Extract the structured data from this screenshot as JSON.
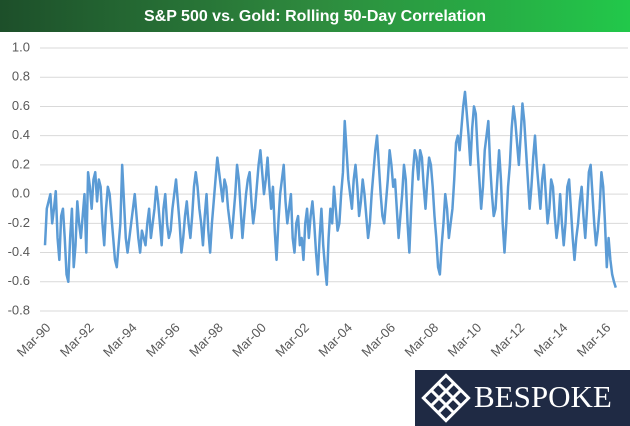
{
  "chart_data": {
    "type": "line",
    "title": "S&P 500 vs. Gold: Rolling 50-Day Correlation",
    "categories": [
      "Mar-90",
      null,
      null,
      null,
      null,
      null,
      null,
      null,
      null,
      null,
      null,
      null,
      null,
      null,
      null,
      null,
      null,
      null,
      null,
      null,
      null,
      null,
      null,
      null,
      "Mar-92",
      null,
      null,
      null,
      null,
      null,
      null,
      null,
      null,
      null,
      null,
      null,
      null,
      null,
      null,
      null,
      null,
      null,
      null,
      null,
      null,
      null,
      null,
      null,
      "Mar-94",
      null,
      null,
      null,
      null,
      null,
      null,
      null,
      null,
      null,
      null,
      null,
      null,
      null,
      null,
      null,
      null,
      null,
      null,
      null,
      null,
      null,
      null,
      null,
      "Mar-96",
      null,
      null,
      null,
      null,
      null,
      null,
      null,
      null,
      null,
      null,
      null,
      null,
      null,
      null,
      null,
      null,
      null,
      null,
      null,
      null,
      null,
      null,
      null,
      "Mar-98",
      null,
      null,
      null,
      null,
      null,
      null,
      null,
      null,
      null,
      null,
      null,
      null,
      null,
      null,
      null,
      null,
      null,
      null,
      null,
      null,
      null,
      null,
      null,
      "Mar-00",
      null,
      null,
      null,
      null,
      null,
      null,
      null,
      null,
      null,
      null,
      null,
      null,
      null,
      null,
      null,
      null,
      null,
      null,
      null,
      null,
      null,
      null,
      null,
      "Mar-02",
      null,
      null,
      null,
      null,
      null,
      null,
      null,
      null,
      null,
      null,
      null,
      null,
      null,
      null,
      null,
      null,
      null,
      null,
      null,
      null,
      null,
      null,
      null,
      "Mar-04",
      null,
      null,
      null,
      null,
      null,
      null,
      null,
      null,
      null,
      null,
      null,
      null,
      null,
      null,
      null,
      null,
      null,
      null,
      null,
      null,
      null,
      null,
      null,
      "Mar-06",
      null,
      null,
      null,
      null,
      null,
      null,
      null,
      null,
      null,
      null,
      null,
      null,
      null,
      null,
      null,
      null,
      null,
      null,
      null,
      null,
      null,
      null,
      null,
      "Mar-08",
      null,
      null,
      null,
      null,
      null,
      null,
      null,
      null,
      null,
      null,
      null,
      null,
      null,
      null,
      null,
      null,
      null,
      null,
      null,
      null,
      null,
      null,
      null,
      "Mar-10",
      null,
      null,
      null,
      null,
      null,
      null,
      null,
      null,
      null,
      null,
      null,
      null,
      null,
      null,
      null,
      null,
      null,
      null,
      null,
      null,
      null,
      null,
      null,
      "Mar-12",
      null,
      null,
      null,
      null,
      null,
      null,
      null,
      null,
      null,
      null,
      null,
      null,
      null,
      null,
      null,
      null,
      null,
      null,
      null,
      null,
      null,
      null,
      null,
      "Mar-14",
      null,
      null,
      null,
      null,
      null,
      null,
      null,
      null,
      null,
      null,
      null,
      null,
      null,
      null,
      null,
      null,
      null,
      null,
      null,
      null,
      null,
      null,
      null,
      "Mar-16",
      null,
      null,
      null,
      null,
      null,
      null
    ],
    "series": [
      {
        "name": "S&P 500 vs. Gold",
        "color": "#5b9bd5",
        "values": [
          -0.35,
          -0.1,
          -0.05,
          0.0,
          -0.2,
          -0.1,
          0.02,
          -0.3,
          -0.45,
          -0.15,
          -0.1,
          -0.3,
          -0.55,
          -0.6,
          -0.3,
          -0.1,
          -0.5,
          -0.35,
          -0.05,
          -0.2,
          -0.3,
          -0.15,
          0.0,
          -0.4,
          0.15,
          0.05,
          -0.1,
          0.1,
          0.15,
          -0.05,
          0.1,
          0.05,
          -0.2,
          -0.35,
          -0.1,
          0.05,
          0.0,
          -0.15,
          -0.3,
          -0.45,
          -0.5,
          -0.35,
          -0.2,
          0.2,
          -0.05,
          -0.3,
          -0.4,
          -0.3,
          -0.2,
          -0.1,
          0.0,
          -0.15,
          -0.3,
          -0.4,
          -0.25,
          -0.3,
          -0.35,
          -0.2,
          -0.1,
          -0.3,
          -0.2,
          -0.1,
          0.05,
          -0.05,
          -0.2,
          -0.35,
          -0.1,
          0.0,
          -0.2,
          -0.3,
          -0.25,
          -0.1,
          0.0,
          0.1,
          -0.05,
          -0.2,
          -0.4,
          -0.3,
          -0.15,
          -0.05,
          -0.2,
          -0.3,
          -0.15,
          0.05,
          0.15,
          0.05,
          -0.1,
          -0.2,
          -0.35,
          -0.15,
          0.0,
          -0.25,
          -0.4,
          -0.2,
          -0.05,
          0.1,
          0.25,
          0.15,
          0.05,
          -0.05,
          0.1,
          0.05,
          -0.1,
          -0.2,
          -0.3,
          -0.15,
          0.0,
          0.2,
          0.1,
          -0.1,
          -0.3,
          -0.15,
          0.0,
          0.1,
          0.15,
          -0.05,
          -0.2,
          -0.1,
          0.05,
          0.2,
          0.3,
          0.15,
          0.0,
          0.1,
          0.25,
          0.05,
          -0.1,
          0.05,
          -0.25,
          -0.45,
          -0.2,
          0.0,
          0.1,
          0.2,
          -0.05,
          -0.2,
          -0.1,
          0.0,
          -0.3,
          -0.4,
          -0.2,
          -0.15,
          -0.35,
          -0.3,
          -0.45,
          -0.2,
          -0.1,
          -0.3,
          -0.15,
          -0.05,
          -0.2,
          -0.4,
          -0.55,
          -0.3,
          -0.1,
          -0.35,
          -0.5,
          -0.62,
          -0.3,
          -0.1,
          -0.2,
          0.05,
          -0.1,
          -0.25,
          -0.2,
          0.0,
          0.15,
          0.5,
          0.3,
          0.1,
          0.0,
          -0.1,
          0.1,
          0.2,
          0.05,
          -0.15,
          -0.05,
          0.1,
          0.0,
          -0.15,
          -0.3,
          -0.2,
          0.0,
          0.15,
          0.3,
          0.4,
          0.2,
          0.0,
          -0.15,
          -0.2,
          -0.05,
          0.1,
          0.3,
          0.2,
          0.05,
          0.1,
          -0.1,
          -0.3,
          -0.15,
          0.0,
          0.2,
          0.1,
          -0.2,
          -0.4,
          -0.1,
          0.15,
          0.3,
          0.25,
          0.1,
          0.3,
          0.25,
          0.05,
          -0.1,
          0.1,
          0.25,
          0.2,
          0.05,
          -0.15,
          -0.3,
          -0.5,
          -0.55,
          -0.35,
          -0.2,
          0.0,
          -0.1,
          -0.3,
          -0.2,
          -0.1,
          0.1,
          0.35,
          0.4,
          0.3,
          0.45,
          0.6,
          0.7,
          0.55,
          0.4,
          0.2,
          0.45,
          0.6,
          0.55,
          0.3,
          0.1,
          -0.1,
          0.05,
          0.3,
          0.4,
          0.5,
          0.2,
          0.0,
          -0.15,
          -0.1,
          0.1,
          0.3,
          0.1,
          -0.2,
          -0.4,
          -0.2,
          0.05,
          0.2,
          0.45,
          0.6,
          0.5,
          0.35,
          0.2,
          0.4,
          0.62,
          0.5,
          0.3,
          0.1,
          -0.1,
          0.05,
          0.25,
          0.4,
          0.2,
          0.05,
          -0.1,
          0.1,
          0.2,
          0.0,
          -0.2,
          -0.1,
          0.1,
          0.05,
          -0.15,
          -0.3,
          -0.2,
          0.0,
          -0.2,
          -0.35,
          -0.2,
          0.05,
          0.1,
          -0.1,
          -0.3,
          -0.45,
          -0.3,
          -0.2,
          -0.05,
          0.05,
          -0.15,
          -0.3,
          -0.1,
          0.15,
          0.2,
          0.0,
          -0.2,
          -0.35,
          -0.25,
          -0.1,
          0.15,
          0.05,
          -0.2,
          -0.5,
          -0.3,
          -0.45,
          -0.55,
          -0.6,
          -0.64
        ]
      }
    ],
    "ylim": [
      -0.8,
      1.0
    ],
    "yticks": [
      {
        "value": 1.0,
        "label": "1.0"
      },
      0.8,
      0.6,
      0.4,
      0.2,
      {
        "value": 0.0,
        "label": "0.0"
      },
      -0.2,
      -0.4,
      -0.6,
      -0.8
    ],
    "grid": true
  },
  "logo": "BESPOKE"
}
